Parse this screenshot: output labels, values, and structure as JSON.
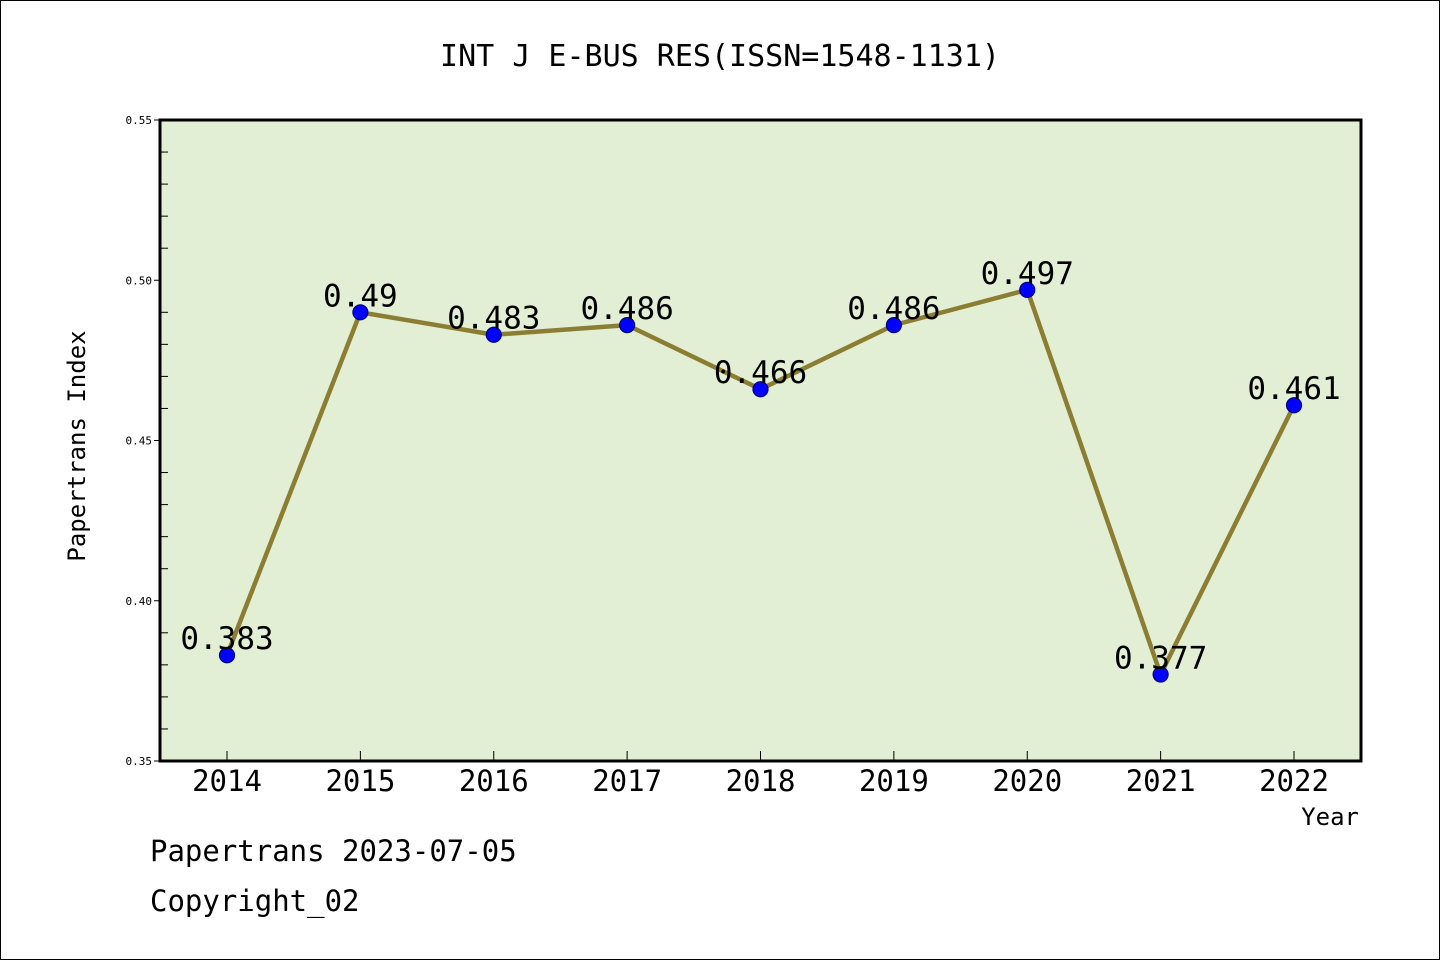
{
  "chart_data": {
    "type": "line",
    "title": "INT J E-BUS RES(ISSN=1548-1131)",
    "xlabel": "Year",
    "ylabel": "Papertrans Index",
    "categories": [
      "2014",
      "2015",
      "2016",
      "2017",
      "2018",
      "2019",
      "2020",
      "2021",
      "2022"
    ],
    "values": [
      0.383,
      0.49,
      0.483,
      0.486,
      0.466,
      0.486,
      0.497,
      0.377,
      0.461
    ],
    "data_labels": [
      "0.383",
      "0.49",
      "0.483",
      "0.486",
      "0.466",
      "0.486",
      "0.497",
      "0.377",
      "0.461"
    ],
    "ylim": [
      0.35,
      0.55
    ],
    "yticks": [
      "0.35",
      "0.40",
      "0.45",
      "0.50",
      "0.55"
    ],
    "grid": false,
    "legend": "none",
    "colors": {
      "plot_background": "#e2efd4",
      "line": "#8b7d32",
      "marker": "#0000ff",
      "marker_edge": "#000080",
      "axes": "#000000"
    }
  },
  "footer": {
    "line1": "Papertrans 2023-07-05",
    "line2": "Copyright_02"
  }
}
